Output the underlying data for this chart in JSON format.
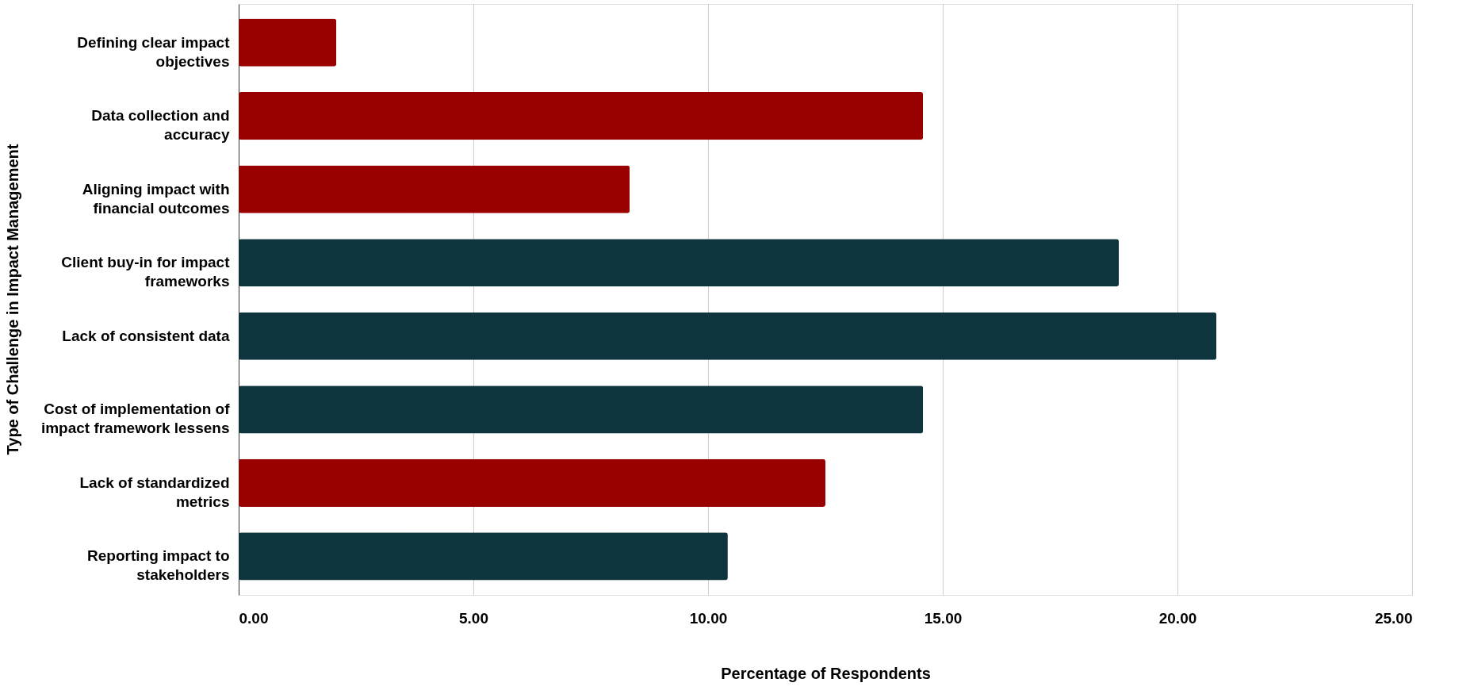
{
  "chart_data": {
    "type": "bar",
    "orientation": "horizontal",
    "xlabel": "Percentage of Respondents",
    "ylabel": "Type of Challenge in Impact Management",
    "categories": [
      "Defining clear impact objectives",
      "Data collection and accuracy",
      "Aligning impact with financial outcomes",
      "Client buy-in for impact frameworks",
      "Lack of consistent data",
      "Cost of implementation of impact framework lessens",
      "Lack of standardized metrics",
      "Reporting impact to stakeholders"
    ],
    "values": [
      2.08,
      14.58,
      8.33,
      18.75,
      20.83,
      14.58,
      12.5,
      10.42
    ],
    "colors": [
      "#990000",
      "#990000",
      "#990000",
      "#0e343d",
      "#0e343d",
      "#0e343d",
      "#990000",
      "#0e343d"
    ],
    "xlim": [
      0,
      25
    ],
    "xticks": [
      {
        "value": 0,
        "label": "0.00"
      },
      {
        "value": 5,
        "label": "5.00"
      },
      {
        "value": 10,
        "label": "10.00"
      },
      {
        "value": 15,
        "label": "15.00"
      },
      {
        "value": 20,
        "label": "20.00"
      },
      {
        "value": 25,
        "label": "25.00"
      }
    ],
    "grid": "x"
  }
}
